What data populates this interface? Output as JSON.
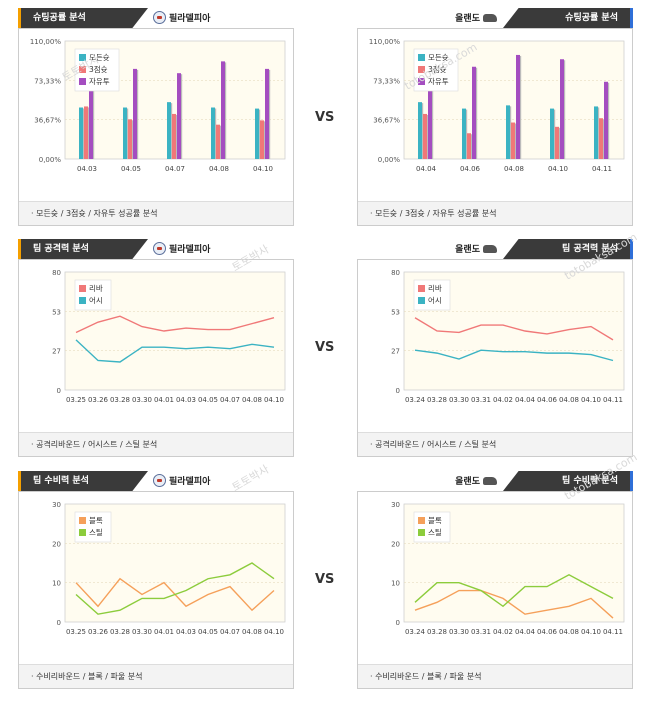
{
  "vs_label": "VS",
  "watermark": [
    "토토박사",
    "totobaksa.com"
  ],
  "colors": {
    "all_win": "#3bb3c3",
    "three_win": "#f07878",
    "free_throw": "#a44dc0",
    "rebound": "#f07878",
    "assist": "#3bb3c3",
    "block": "#f5a05a",
    "steal": "#8ccc3c",
    "plot_bg": "#fffcf0"
  },
  "panels": [
    {
      "title": "슈팅공률 분석",
      "team": "필라델피아",
      "side": "left",
      "caption": "모든슛 / 3점슛 / 자유투 성공률 분석",
      "chart_data": {
        "type": "bar",
        "categories": [
          "04.03",
          "04.05",
          "04.07",
          "04.08",
          "04.10"
        ],
        "yticks": [
          "110,00%",
          "73,33%",
          "36,67%",
          "0,00%"
        ],
        "ylim": [
          0,
          110
        ],
        "series": [
          {
            "name": "모든슛",
            "values": [
              48,
              48,
              53,
              48,
              47
            ]
          },
          {
            "name": "3점슛",
            "values": [
              49,
              37,
              42,
              32,
              36
            ]
          },
          {
            "name": "자유투",
            "values": [
              79,
              84,
              80,
              91,
              84
            ]
          }
        ]
      }
    },
    {
      "title": "슈팅공률 분석",
      "team": "올랜도",
      "side": "right",
      "caption": "모든슛 / 3점슛 / 자유투 성공률 분석",
      "chart_data": {
        "type": "bar",
        "categories": [
          "04.04",
          "04.06",
          "04.08",
          "04.10",
          "04.11"
        ],
        "yticks": [
          "110,00%",
          "73,33%",
          "36,67%",
          "0,00%"
        ],
        "ylim": [
          0,
          110
        ],
        "series": [
          {
            "name": "모든슛",
            "values": [
              53,
              47,
              50,
              47,
              49
            ]
          },
          {
            "name": "3점슛",
            "values": [
              42,
              24,
              34,
              30,
              38
            ]
          },
          {
            "name": "자유투",
            "values": [
              87,
              86,
              97,
              93,
              72
            ]
          }
        ]
      }
    },
    {
      "title": "팀 공격력 분석",
      "team": "필라델피아",
      "side": "left",
      "caption": "공격리바운드 / 어시스트 / 스틸 분석",
      "chart_data": {
        "type": "line",
        "categories": [
          "03.25",
          "03.26",
          "03.28",
          "03.30",
          "04.01",
          "04.03",
          "04.05",
          "04.07",
          "04.08",
          "04.10"
        ],
        "yticks": [
          "80",
          "53",
          "27",
          "0"
        ],
        "ylim": [
          0,
          80
        ],
        "series": [
          {
            "name": "리바",
            "values": [
              39,
              46,
              50,
              43,
              40,
              42,
              41,
              41,
              45,
              49
            ]
          },
          {
            "name": "어시",
            "values": [
              34,
              20,
              19,
              29,
              29,
              28,
              29,
              28,
              31,
              29
            ]
          }
        ]
      }
    },
    {
      "title": "팀 공격력 분석",
      "team": "올랜도",
      "side": "right",
      "caption": "공격리바운드 / 어시스트 / 스틸 분석",
      "chart_data": {
        "type": "line",
        "categories": [
          "03.24",
          "03.28",
          "03.30",
          "03.31",
          "04.02",
          "04.04",
          "04.06",
          "04.08",
          "04.10",
          "04.11"
        ],
        "yticks": [
          "80",
          "53",
          "27",
          "0"
        ],
        "ylim": [
          0,
          80
        ],
        "series": [
          {
            "name": "리바",
            "values": [
              49,
              40,
              39,
              44,
              44,
              40,
              38,
              41,
              43,
              34
            ]
          },
          {
            "name": "어시",
            "values": [
              27,
              25,
              21,
              27,
              26,
              26,
              25,
              25,
              24,
              20
            ]
          }
        ]
      }
    },
    {
      "title": "팀 수비력 분석",
      "team": "필라델피아",
      "side": "left",
      "caption": "수비리바운드 / 블록 / 파울 분석",
      "chart_data": {
        "type": "line",
        "categories": [
          "03.25",
          "03.26",
          "03.28",
          "03.30",
          "04.01",
          "04.03",
          "04.05",
          "04.07",
          "04.08",
          "04.10"
        ],
        "yticks": [
          "30",
          "20",
          "10",
          "0"
        ],
        "ylim": [
          0,
          30
        ],
        "series": [
          {
            "name": "블록",
            "values": [
              10,
              4,
              11,
              7,
              10,
              4,
              7,
              9,
              3,
              8
            ]
          },
          {
            "name": "스틸",
            "values": [
              7,
              2,
              3,
              6,
              6,
              8,
              11,
              12,
              15,
              11
            ]
          }
        ]
      }
    },
    {
      "title": "팀 수비력 분석",
      "team": "올랜도",
      "side": "right",
      "caption": "수비리바운드 / 블록 / 파울 분석",
      "chart_data": {
        "type": "line",
        "categories": [
          "03.24",
          "03.28",
          "03.30",
          "03.31",
          "04.02",
          "04.04",
          "04.06",
          "04.08",
          "04.10",
          "04.11"
        ],
        "yticks": [
          "30",
          "20",
          "10",
          "0"
        ],
        "ylim": [
          0,
          30
        ],
        "series": [
          {
            "name": "블록",
            "values": [
              3,
              5,
              8,
              8,
              6,
              2,
              3,
              4,
              6,
              1
            ]
          },
          {
            "name": "스틸",
            "values": [
              5,
              10,
              10,
              8,
              4,
              9,
              9,
              12,
              9,
              6
            ]
          }
        ]
      }
    }
  ]
}
